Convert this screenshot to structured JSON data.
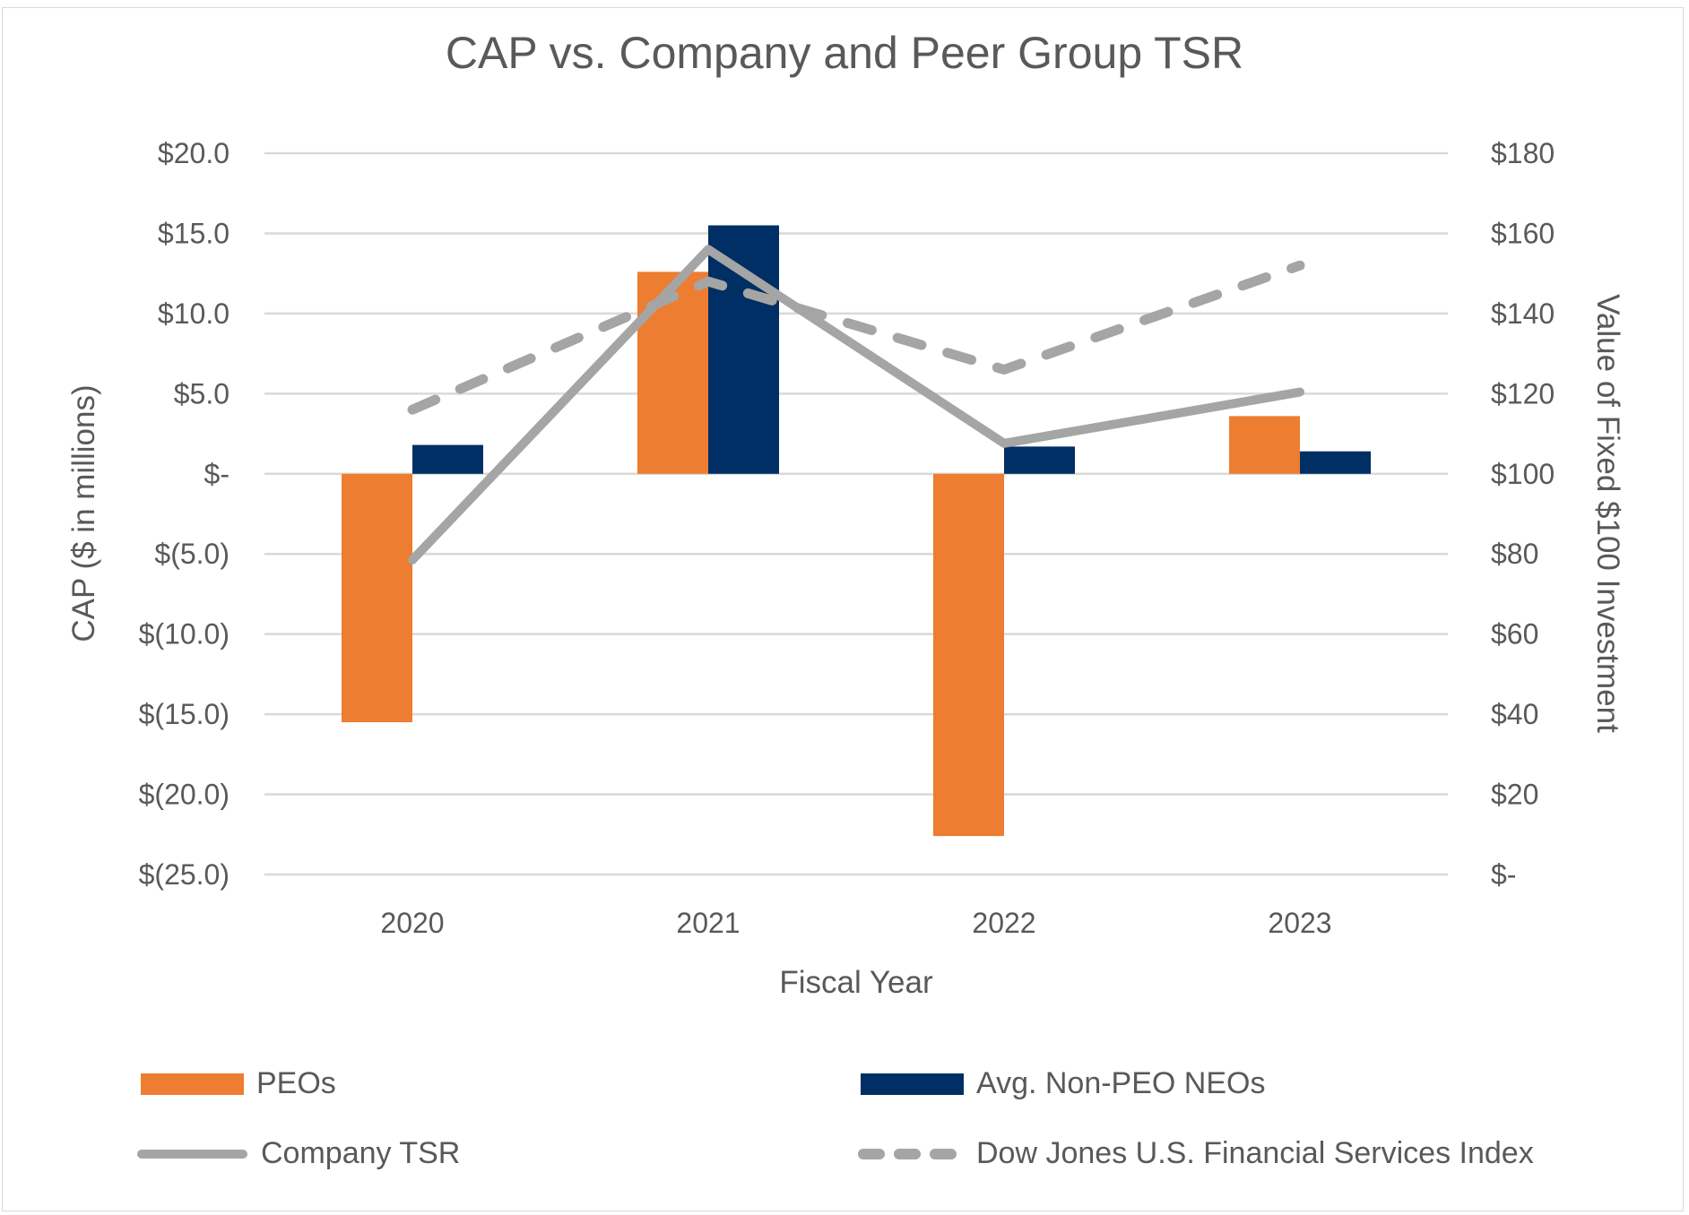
{
  "chart_data": {
    "type": "bar",
    "title": "CAP vs. Company and Peer Group TSR",
    "xlabel": "Fiscal Year",
    "ylabel": "CAP ($ in millions)",
    "y2label": "Value of Fixed $100 Investment",
    "categories": [
      "2020",
      "2021",
      "2022",
      "2023"
    ],
    "ylim": [
      -25,
      20
    ],
    "y2lim": [
      0,
      180
    ],
    "yticks": [
      20,
      15,
      10,
      5,
      0,
      -5,
      -10,
      -15,
      -20,
      -25
    ],
    "ytick_labels": [
      "$20.0",
      "$15.0",
      "$10.0",
      "$5.0",
      "$-",
      "$(5.0)",
      "$(10.0)",
      "$(15.0)",
      "$(20.0)",
      "$(25.0)"
    ],
    "y2ticks": [
      180,
      160,
      140,
      120,
      100,
      80,
      60,
      40,
      20,
      0
    ],
    "y2tick_labels": [
      "$180",
      "$160",
      "$140",
      "$120",
      "$100",
      "$80",
      "$60",
      "$40",
      "$20",
      "$-"
    ],
    "grid": true,
    "legend_position": "bottom",
    "series": [
      {
        "name": "PEOs",
        "type": "bar",
        "axis": "left",
        "color": "#ED7D31",
        "values": [
          -15.5,
          12.6,
          -22.6,
          3.6
        ]
      },
      {
        "name": "Avg. Non-PEO NEOs",
        "type": "bar",
        "axis": "left",
        "color": "#002F65",
        "values": [
          1.8,
          15.5,
          1.7,
          1.4
        ]
      },
      {
        "name": "Company TSR",
        "type": "line",
        "axis": "right",
        "color": "#A5A5A5",
        "dash": "solid",
        "values": [
          78.5,
          156,
          107.6,
          120.4
        ]
      },
      {
        "name": "Dow Jones U.S. Financial Services Index",
        "type": "line",
        "axis": "right",
        "color": "#A5A5A5",
        "dash": "dashed",
        "values": [
          116,
          148,
          126,
          152
        ]
      }
    ]
  }
}
